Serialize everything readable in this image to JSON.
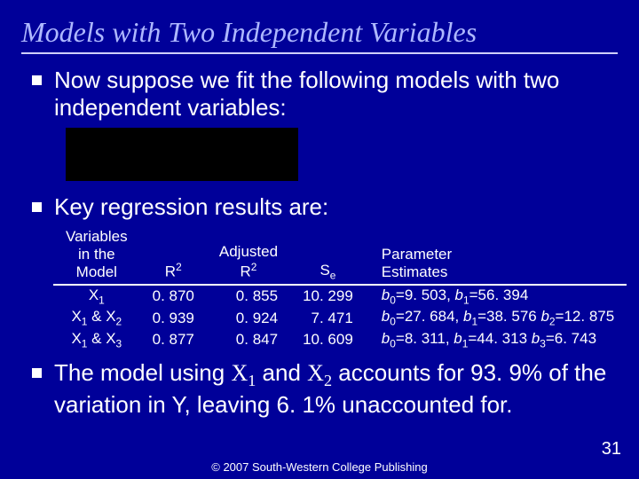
{
  "title": "Models with Two Independent Variables",
  "bullets": {
    "b1": "Now suppose we fit the following models with two independent variables:",
    "b2": "Key regression results are:",
    "b3_pre": "The model using ",
    "b3_x1": "X",
    "b3_sub1": "1",
    "b3_mid": " and ",
    "b3_x2": "X",
    "b3_sub2": "2",
    "b3_post": " accounts for 93. 9% of the variation in Y, leaving 6. 1% unaccounted for."
  },
  "table": {
    "headers": {
      "vars_l1": "Variables",
      "vars_l2": "in the Model",
      "r2": "R",
      "r2_sup": "2",
      "adj_l1": "Adjusted",
      "adj_l2": "R",
      "adj_sup": "2",
      "se": "S",
      "se_sub": "e",
      "param_l1": "Parameter",
      "param_l2": "Estimates"
    },
    "rows": [
      {
        "label_html": "X<sub>1</sub>",
        "r2": "0. 870",
        "adj": "0. 855",
        "se": "10. 299",
        "est_html": "<i>b</i><sub>0</sub>=9. 503, <i>b</i><sub>1</sub>=56. 394"
      },
      {
        "label_html": "X<sub>1</sub> & X<sub>2</sub>",
        "r2": "0. 939",
        "adj": "0. 924",
        "se": "7. 471",
        "est_html": "<i>b</i><sub>0</sub>=27. 684, <i>b</i><sub>1</sub>=38. 576 <i>b</i><sub>2</sub>=12. 875"
      },
      {
        "label_html": "X<sub>1</sub> & X<sub>3</sub>",
        "r2": "0. 877",
        "adj": "0. 847",
        "se": "10. 609",
        "est_html": "<i>b</i><sub>0</sub>=8. 311, <i>b</i><sub>1</sub>=44. 313 <i>b</i><sub>3</sub>=6. 743"
      }
    ]
  },
  "footer": {
    "copyright": "© 2007 South-Western College Publishing",
    "page": "31"
  },
  "colors": {
    "background": "#000099",
    "title": "#aeb8ff",
    "text": "#ffffff",
    "rule": "#d0d0ff",
    "eq_box": "#000000"
  }
}
